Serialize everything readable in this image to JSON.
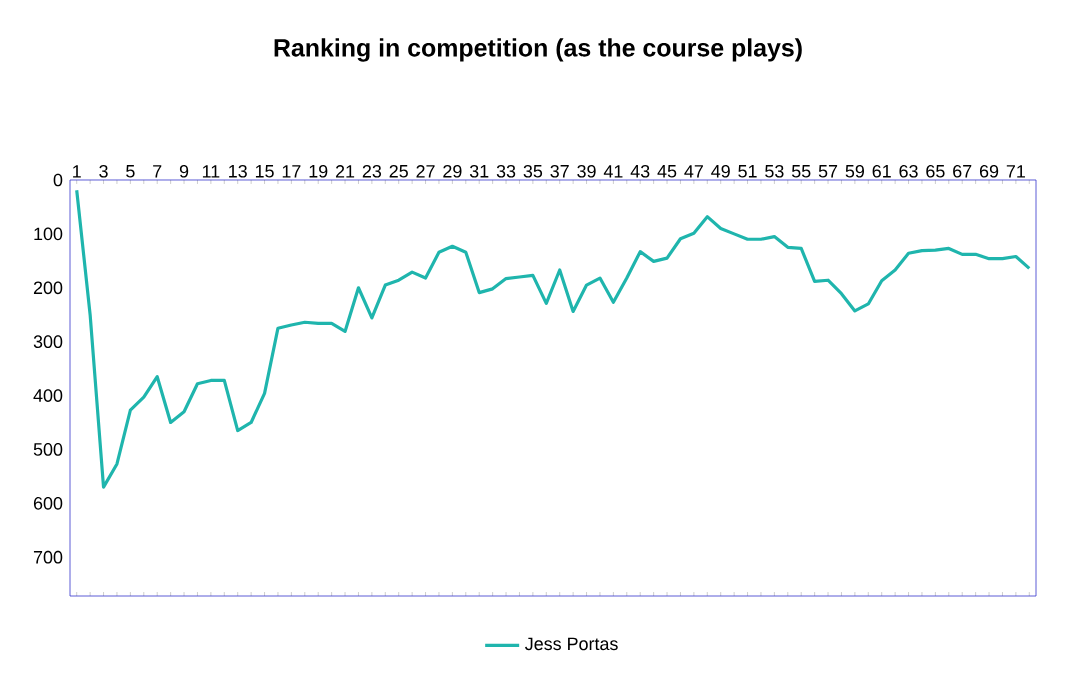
{
  "chart_data": {
    "type": "line",
    "title": "Ranking in competition (as the course plays)",
    "categories": [
      "1",
      null,
      "3",
      null,
      "5",
      null,
      "7",
      null,
      "9",
      null,
      "11",
      null,
      "13",
      null,
      "15",
      null,
      "17",
      null,
      "19",
      null,
      "21",
      null,
      "23",
      null,
      "25",
      null,
      "27",
      null,
      "29",
      null,
      "31",
      null,
      "33",
      null,
      "35",
      null,
      "37",
      null,
      "39",
      null,
      "41",
      null,
      "43",
      null,
      "45",
      null,
      "47",
      null,
      "49",
      null,
      "51",
      null,
      "53",
      null,
      "55",
      null,
      "57",
      null,
      "59",
      null,
      "61",
      null,
      "63",
      null,
      "65",
      null,
      "67",
      null,
      "69",
      null,
      "71",
      null
    ],
    "series": [
      {
        "name": "Jess Portas",
        "color": "#1fb5ad",
        "values": [
          19,
          250,
          570,
          527,
          427,
          403,
          365,
          450,
          430,
          378,
          372,
          372,
          465,
          450,
          396,
          275,
          269,
          264,
          266,
          266,
          281,
          200,
          256,
          195,
          186,
          171,
          182,
          134,
          123,
          134,
          209,
          202,
          183,
          180,
          177,
          229,
          167,
          244,
          195,
          182,
          227,
          182,
          133,
          151,
          145,
          109,
          99,
          68,
          90,
          100,
          110,
          110,
          105,
          125,
          127,
          188,
          186,
          211,
          243,
          230,
          187,
          167,
          136,
          131,
          130,
          127,
          138,
          138,
          146,
          146,
          142,
          164
        ]
      }
    ],
    "ylim": [
      772,
      0
    ],
    "yticks": [
      0,
      100,
      200,
      300,
      400,
      500,
      600,
      700
    ],
    "grid": false,
    "legend": "bottom",
    "marker": "none",
    "line_style": "solid"
  }
}
